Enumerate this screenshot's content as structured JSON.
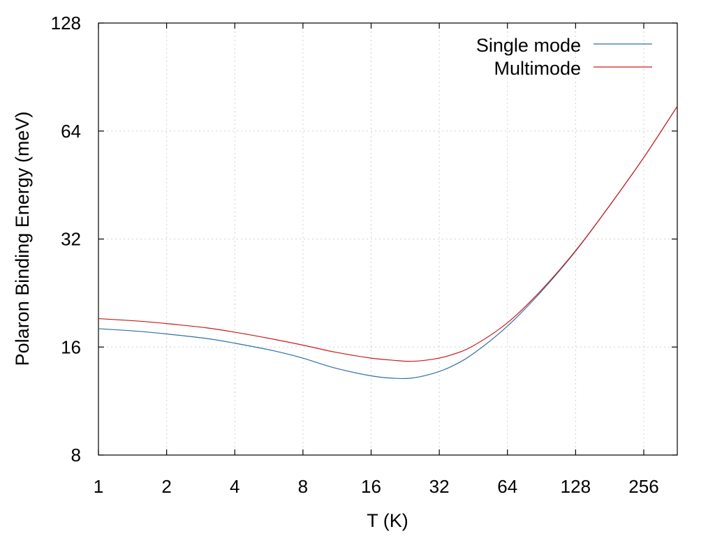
{
  "chart_data": {
    "type": "line",
    "title": "",
    "xlabel": "T (K)",
    "ylabel": "Polaron Binding Energy (meV)",
    "x_scale": "log2",
    "y_scale": "log2",
    "xlim": [
      1,
      360
    ],
    "ylim": [
      8,
      128
    ],
    "x_ticks": [
      1,
      2,
      4,
      8,
      16,
      32,
      64,
      128,
      256
    ],
    "x_tick_labels": [
      "1",
      "2",
      "4",
      "8",
      "16",
      "32",
      "64",
      "128",
      "256"
    ],
    "y_ticks": [
      8,
      16,
      32,
      64,
      128
    ],
    "y_tick_labels": [
      "8",
      "16",
      "32",
      "64",
      "128"
    ],
    "grid": true,
    "legend_position": "top-right",
    "series": [
      {
        "name": "Single mode",
        "color": "#2e6fa7",
        "x": [
          1,
          1.5,
          2,
          3,
          4,
          6,
          8,
          11,
          16,
          20,
          24,
          30,
          36,
          45,
          64,
          90,
          128,
          180,
          256,
          360
        ],
        "y": [
          18.0,
          17.7,
          17.4,
          16.9,
          16.4,
          15.6,
          14.9,
          14.0,
          13.3,
          13.1,
          13.1,
          13.5,
          14.1,
          15.3,
          18.3,
          22.8,
          29.6,
          39.5,
          54.0,
          75.0
        ]
      },
      {
        "name": "Multimode",
        "color": "#cc1a1a",
        "x": [
          1,
          1.5,
          2,
          3,
          4,
          6,
          8,
          11,
          16,
          20,
          24,
          30,
          36,
          45,
          64,
          90,
          128,
          180,
          256,
          360
        ],
        "y": [
          19.2,
          18.9,
          18.6,
          18.1,
          17.6,
          16.8,
          16.2,
          15.5,
          14.9,
          14.7,
          14.6,
          14.8,
          15.2,
          16.1,
          18.7,
          23.0,
          29.7,
          39.5,
          54.0,
          75.0
        ]
      }
    ]
  }
}
